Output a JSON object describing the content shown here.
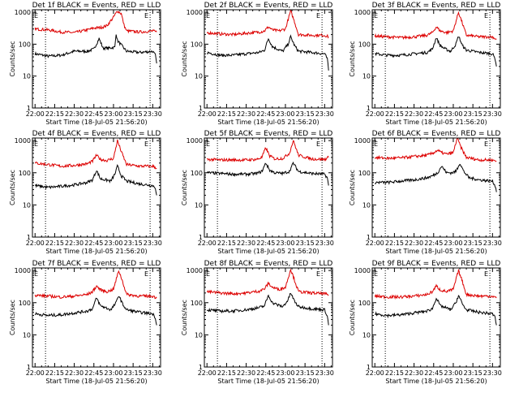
{
  "figure": {
    "x_tick_labels": [
      "22:00",
      "22:15",
      "22:30",
      "22:45",
      "23:00",
      "23:15",
      "23:30"
    ],
    "y_tick_labels": [
      "1",
      "10",
      "100",
      "1000"
    ],
    "ylabel": "Counts/sec",
    "xlabel": "Start Time (18-Jul-05 21:56:20)",
    "marker_label": "E",
    "colors": {
      "events": "#000000",
      "lld": "#dd0000",
      "axes": "#000000",
      "background": "#ffffff"
    }
  },
  "chart_data": [
    {
      "type": "line",
      "title": "Det 1f BLACK = Events, RED = LLD",
      "xlim": [
        "21:58",
        "23:36"
      ],
      "ylim": [
        1,
        1200
      ],
      "y_scale": "log",
      "grid": false,
      "markers": [
        "22:08",
        "23:28"
      ],
      "series": [
        {
          "name": "BLACK = Events",
          "color": "#000000",
          "x": [
            "22:00",
            "22:10",
            "22:20",
            "22:30",
            "22:40",
            "22:45",
            "22:49",
            "22:52",
            "22:56",
            "22:59",
            "23:01",
            "23:02",
            "23:03",
            "23:10",
            "23:20",
            "23:30",
            "23:32",
            "23:33"
          ],
          "y": [
            50,
            42,
            45,
            60,
            60,
            70,
            150,
            75,
            75,
            78,
            80,
            220,
            130,
            60,
            55,
            60,
            45,
            25
          ]
        },
        {
          "name": "RED = LLD",
          "color": "#dd0000",
          "x": [
            "22:00",
            "22:10",
            "22:20",
            "22:30",
            "22:40",
            "22:45",
            "22:50",
            "22:55",
            "23:00",
            "23:03",
            "23:06",
            "23:08",
            "23:10",
            "23:15",
            "23:20",
            "23:30",
            "23:33"
          ],
          "y": [
            300,
            280,
            240,
            230,
            280,
            320,
            330,
            380,
            700,
            1100,
            900,
            400,
            260,
            250,
            240,
            260,
            240
          ]
        }
      ]
    },
    {
      "type": "line",
      "title": "Det 2f BLACK = Events, RED = LLD",
      "xlim": [
        "21:58",
        "23:36"
      ],
      "ylim": [
        1,
        1200
      ],
      "y_scale": "log",
      "grid": false,
      "markers": [
        "22:08",
        "23:28"
      ],
      "series": [
        {
          "name": "BLACK = Events",
          "color": "#000000",
          "x": [
            "22:00",
            "22:10",
            "22:20",
            "22:30",
            "22:40",
            "22:44",
            "22:47",
            "22:50",
            "22:54",
            "22:58",
            "23:02",
            "23:04",
            "23:07",
            "23:10",
            "23:20",
            "23:30",
            "23:32",
            "23:33"
          ],
          "y": [
            55,
            45,
            45,
            50,
            55,
            65,
            150,
            85,
            70,
            60,
            100,
            170,
            90,
            60,
            55,
            50,
            35,
            15
          ]
        },
        {
          "name": "RED = LLD",
          "color": "#dd0000",
          "x": [
            "22:00",
            "22:10",
            "22:20",
            "22:30",
            "22:40",
            "22:44",
            "22:47",
            "22:50",
            "22:55",
            "23:00",
            "23:04",
            "23:07",
            "23:10",
            "23:20",
            "23:30",
            "23:33"
          ],
          "y": [
            230,
            210,
            200,
            220,
            240,
            260,
            350,
            280,
            260,
            300,
            1100,
            500,
            200,
            190,
            190,
            170
          ]
        }
      ]
    },
    {
      "type": "line",
      "title": "Det 3f BLACK = Events, RED = LLD",
      "xlim": [
        "21:58",
        "23:36"
      ],
      "ylim": [
        1,
        1200
      ],
      "y_scale": "log",
      "grid": false,
      "markers": [
        "22:08",
        "23:28"
      ],
      "series": [
        {
          "name": "BLACK = Events",
          "color": "#000000",
          "x": [
            "22:00",
            "22:10",
            "22:20",
            "22:30",
            "22:40",
            "22:44",
            "22:47",
            "22:50",
            "22:54",
            "22:58",
            "23:02",
            "23:04",
            "23:07",
            "23:10",
            "23:20",
            "23:30",
            "23:32",
            "23:33"
          ],
          "y": [
            50,
            45,
            45,
            50,
            55,
            70,
            160,
            90,
            70,
            60,
            100,
            180,
            90,
            65,
            55,
            50,
            35,
            20
          ]
        },
        {
          "name": "RED = LLD",
          "color": "#dd0000",
          "x": [
            "22:00",
            "22:10",
            "22:20",
            "22:30",
            "22:40",
            "22:44",
            "22:47",
            "22:50",
            "22:55",
            "23:00",
            "23:04",
            "23:07",
            "23:10",
            "23:20",
            "23:30",
            "23:33"
          ],
          "y": [
            180,
            170,
            160,
            170,
            190,
            230,
            350,
            260,
            230,
            260,
            1000,
            450,
            190,
            170,
            170,
            140
          ]
        }
      ]
    },
    {
      "type": "line",
      "title": "Det 4f BLACK = Events, RED = LLD",
      "xlim": [
        "21:58",
        "23:36"
      ],
      "ylim": [
        1,
        1200
      ],
      "y_scale": "log",
      "grid": false,
      "markers": [
        "22:08",
        "23:28"
      ],
      "series": [
        {
          "name": "BLACK = Events",
          "color": "#000000",
          "x": [
            "22:00",
            "22:10",
            "22:20",
            "22:30",
            "22:40",
            "22:44",
            "22:47",
            "22:50",
            "22:54",
            "22:58",
            "23:01",
            "23:03",
            "23:06",
            "23:10",
            "23:20",
            "23:30",
            "23:32",
            "23:33"
          ],
          "y": [
            40,
            35,
            38,
            42,
            50,
            60,
            120,
            65,
            60,
            55,
            90,
            160,
            80,
            55,
            45,
            40,
            35,
            20
          ]
        },
        {
          "name": "RED = LLD",
          "color": "#dd0000",
          "x": [
            "22:00",
            "22:10",
            "22:20",
            "22:30",
            "22:40",
            "22:44",
            "22:47",
            "22:50",
            "22:55",
            "23:00",
            "23:03",
            "23:06",
            "23:10",
            "23:20",
            "23:30",
            "23:33"
          ],
          "y": [
            200,
            180,
            160,
            170,
            190,
            230,
            350,
            260,
            240,
            280,
            1000,
            450,
            180,
            160,
            160,
            140
          ]
        }
      ]
    },
    {
      "type": "line",
      "title": "Det 5f BLACK = Events, RED = LLD",
      "xlim": [
        "21:58",
        "23:36"
      ],
      "ylim": [
        1,
        1200
      ],
      "y_scale": "log",
      "grid": false,
      "markers": [
        "22:08",
        "23:28"
      ],
      "series": [
        {
          "name": "BLACK = Events",
          "color": "#000000",
          "x": [
            "22:00",
            "22:10",
            "22:20",
            "22:30",
            "22:38",
            "22:42",
            "22:45",
            "22:48",
            "22:52",
            "22:58",
            "23:03",
            "23:06",
            "23:10",
            "23:20",
            "23:30",
            "23:32",
            "23:33"
          ],
          "y": [
            100,
            95,
            90,
            90,
            95,
            110,
            200,
            120,
            100,
            95,
            110,
            200,
            110,
            95,
            90,
            70,
            40
          ]
        },
        {
          "name": "RED = LLD",
          "color": "#dd0000",
          "x": [
            "22:00",
            "22:10",
            "22:20",
            "22:30",
            "22:38",
            "22:42",
            "22:45",
            "22:48",
            "22:52",
            "22:58",
            "23:03",
            "23:06",
            "23:10",
            "23:20",
            "23:30",
            "23:33"
          ],
          "y": [
            260,
            250,
            250,
            250,
            260,
            300,
            600,
            330,
            270,
            280,
            400,
            1000,
            350,
            270,
            260,
            300
          ]
        }
      ]
    },
    {
      "type": "line",
      "title": "Det 6f BLACK = Events, RED = LLD",
      "xlim": [
        "21:58",
        "23:36"
      ],
      "ylim": [
        1,
        1200
      ],
      "y_scale": "log",
      "grid": false,
      "markers": [
        "22:08",
        "23:28"
      ],
      "series": [
        {
          "name": "BLACK = Events",
          "color": "#000000",
          "x": [
            "22:00",
            "22:10",
            "22:20",
            "22:30",
            "22:40",
            "22:44",
            "22:48",
            "22:51",
            "22:55",
            "22:59",
            "23:02",
            "23:05",
            "23:08",
            "23:12",
            "23:20",
            "23:30",
            "23:32",
            "23:33"
          ],
          "y": [
            50,
            50,
            55,
            60,
            70,
            80,
            100,
            160,
            100,
            100,
            110,
            200,
            110,
            70,
            60,
            55,
            40,
            25
          ]
        },
        {
          "name": "RED = LLD",
          "color": "#dd0000",
          "x": [
            "22:00",
            "22:10",
            "22:20",
            "22:30",
            "22:40",
            "22:44",
            "22:48",
            "22:51",
            "22:55",
            "23:00",
            "23:03",
            "23:06",
            "23:10",
            "23:20",
            "23:30",
            "23:33"
          ],
          "y": [
            300,
            280,
            290,
            320,
            350,
            400,
            500,
            420,
            380,
            420,
            1200,
            600,
            300,
            250,
            250,
            230
          ]
        }
      ]
    },
    {
      "type": "line",
      "title": "Det 7f BLACK = Events, RED = LLD",
      "xlim": [
        "21:58",
        "23:36"
      ],
      "ylim": [
        1,
        1200
      ],
      "y_scale": "log",
      "grid": false,
      "markers": [
        "22:08",
        "23:28"
      ],
      "series": [
        {
          "name": "BLACK = Events",
          "color": "#000000",
          "x": [
            "22:00",
            "22:10",
            "22:20",
            "22:30",
            "22:40",
            "22:44",
            "22:47",
            "22:50",
            "22:54",
            "22:58",
            "23:02",
            "23:04",
            "23:07",
            "23:10",
            "23:20",
            "23:30",
            "23:32",
            "23:33"
          ],
          "y": [
            45,
            40,
            42,
            48,
            55,
            65,
            140,
            80,
            70,
            60,
            100,
            170,
            90,
            60,
            50,
            45,
            35,
            20
          ]
        },
        {
          "name": "RED = LLD",
          "color": "#dd0000",
          "x": [
            "22:00",
            "22:10",
            "22:20",
            "22:30",
            "22:40",
            "22:44",
            "22:47",
            "22:50",
            "22:55",
            "23:00",
            "23:04",
            "23:07",
            "23:10",
            "23:20",
            "23:30",
            "23:33"
          ],
          "y": [
            170,
            160,
            150,
            160,
            180,
            220,
            330,
            250,
            220,
            260,
            1000,
            450,
            180,
            160,
            160,
            140
          ]
        }
      ]
    },
    {
      "type": "line",
      "title": "Det 8f BLACK = Events, RED = LLD",
      "xlim": [
        "21:58",
        "23:36"
      ],
      "ylim": [
        1,
        1200
      ],
      "y_scale": "log",
      "grid": false,
      "markers": [
        "22:08",
        "23:28"
      ],
      "series": [
        {
          "name": "BLACK = Events",
          "color": "#000000",
          "x": [
            "22:00",
            "22:10",
            "22:20",
            "22:30",
            "22:40",
            "22:44",
            "22:47",
            "22:50",
            "22:54",
            "22:58",
            "23:02",
            "23:04",
            "23:07",
            "23:10",
            "23:20",
            "23:30",
            "23:32",
            "23:33"
          ],
          "y": [
            60,
            55,
            55,
            60,
            70,
            80,
            170,
            100,
            85,
            75,
            120,
            200,
            110,
            75,
            65,
            60,
            40,
            20
          ]
        },
        {
          "name": "RED = LLD",
          "color": "#dd0000",
          "x": [
            "22:00",
            "22:10",
            "22:20",
            "22:30",
            "22:40",
            "22:44",
            "22:47",
            "22:50",
            "22:55",
            "23:00",
            "23:04",
            "23:07",
            "23:10",
            "23:20",
            "23:30",
            "23:33"
          ],
          "y": [
            220,
            200,
            190,
            200,
            230,
            270,
            400,
            300,
            260,
            300,
            1100,
            500,
            220,
            200,
            190,
            170
          ]
        }
      ]
    },
    {
      "type": "line",
      "title": "Det 9f BLACK = Events, RED = LLD",
      "xlim": [
        "21:58",
        "23:36"
      ],
      "ylim": [
        1,
        1200
      ],
      "y_scale": "log",
      "grid": false,
      "markers": [
        "22:08",
        "23:28"
      ],
      "series": [
        {
          "name": "BLACK = Events",
          "color": "#000000",
          "x": [
            "22:00",
            "22:10",
            "22:20",
            "22:30",
            "22:40",
            "22:44",
            "22:47",
            "22:50",
            "22:54",
            "22:58",
            "23:02",
            "23:04",
            "23:07",
            "23:10",
            "23:20",
            "23:30",
            "23:32",
            "23:33"
          ],
          "y": [
            45,
            40,
            42,
            48,
            55,
            65,
            140,
            80,
            70,
            60,
            100,
            170,
            90,
            60,
            50,
            45,
            35,
            20
          ]
        },
        {
          "name": "RED = LLD",
          "color": "#dd0000",
          "x": [
            "22:00",
            "22:10",
            "22:20",
            "22:30",
            "22:40",
            "22:44",
            "22:47",
            "22:50",
            "22:55",
            "23:00",
            "23:04",
            "23:07",
            "23:10",
            "23:20",
            "23:30",
            "23:33"
          ],
          "y": [
            160,
            150,
            150,
            160,
            180,
            220,
            330,
            250,
            220,
            260,
            1000,
            450,
            180,
            160,
            160,
            140
          ]
        }
      ]
    }
  ]
}
